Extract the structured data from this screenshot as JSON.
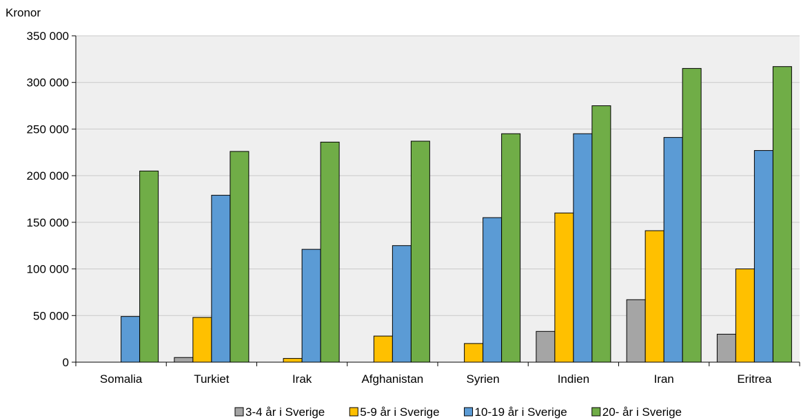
{
  "chart_data": {
    "type": "bar",
    "ylabel": "Kronor",
    "ylim": [
      0,
      350000
    ],
    "yticks": [
      0,
      50000,
      100000,
      150000,
      200000,
      250000,
      300000,
      350000
    ],
    "ytick_labels": [
      "0",
      "50 000",
      "100 000",
      "150 000",
      "200 000",
      "250 000",
      "300 000",
      "350 000"
    ],
    "grid": true,
    "legend_position": "bottom",
    "categories": [
      "Somalia",
      "Turkiet",
      "Irak",
      "Afghanistan",
      "Syrien",
      "Indien",
      "Iran",
      "Eritrea"
    ],
    "series": [
      {
        "name": "3-4 år i Sverige",
        "color": "#a5a5a5",
        "values": [
          0,
          5000,
          0,
          0,
          0,
          33000,
          67000,
          30000
        ]
      },
      {
        "name": "5-9 år i Sverige",
        "color": "#ffc000",
        "values": [
          0,
          48000,
          4000,
          28000,
          20000,
          160000,
          141000,
          100000
        ]
      },
      {
        "name": "10-19 år i Sverige",
        "color": "#5b9bd5",
        "values": [
          49000,
          179000,
          121000,
          125000,
          155000,
          245000,
          241000,
          227000
        ]
      },
      {
        "name": "20- år i Sverige",
        "color": "#70ad47",
        "values": [
          205000,
          226000,
          236000,
          237000,
          245000,
          275000,
          315000,
          317000
        ]
      }
    ]
  }
}
